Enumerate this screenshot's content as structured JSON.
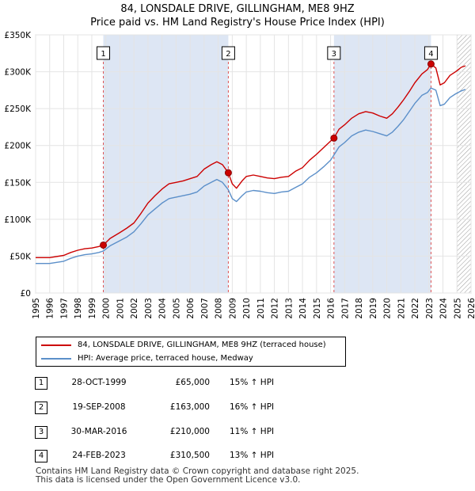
{
  "header": {
    "title": "84, LONSDALE DRIVE, GILLINGHAM, ME8 9HZ",
    "subtitle": "Price paid vs. HM Land Registry's House Price Index (HPI)"
  },
  "chart_data": {
    "type": "line",
    "title": "84, LONSDALE DRIVE, GILLINGHAM, ME8 9HZ",
    "subtitle": "Price paid vs. HM Land Registry's House Price Index (HPI)",
    "xlim": [
      1995,
      2026
    ],
    "ylim": [
      0,
      350000
    ],
    "x_ticks": [
      "1995",
      "1996",
      "1997",
      "1998",
      "1999",
      "2000",
      "2001",
      "2002",
      "2003",
      "2004",
      "2005",
      "2006",
      "2007",
      "2008",
      "2009",
      "2010",
      "2011",
      "2012",
      "2013",
      "2014",
      "2015",
      "2016",
      "2017",
      "2018",
      "2019",
      "2020",
      "2021",
      "2022",
      "2023",
      "2024",
      "2025",
      "2026"
    ],
    "y_ticks": [
      {
        "value": 0,
        "label": "£0"
      },
      {
        "value": 50000,
        "label": "£50K"
      },
      {
        "value": 100000,
        "label": "£100K"
      },
      {
        "value": 150000,
        "label": "£150K"
      },
      {
        "value": 200000,
        "label": "£200K"
      },
      {
        "value": 250000,
        "label": "£250K"
      },
      {
        "value": 300000,
        "label": "£300K"
      },
      {
        "value": 350000,
        "label": "£350K"
      }
    ],
    "series": [
      {
        "name": "84, LONSDALE DRIVE, GILLINGHAM, ME8 9HZ (terraced house)",
        "color": "#cc0000",
        "x": [
          1995.0,
          1996.0,
          1997.0,
          1997.5,
          1998.0,
          1998.5,
          1999.0,
          1999.5,
          1999.82,
          2000.3,
          2001.0,
          2001.5,
          2002.0,
          2002.5,
          2003.0,
          2003.5,
          2004.0,
          2004.5,
          2005.0,
          2005.5,
          2006.0,
          2006.5,
          2007.0,
          2007.5,
          2007.9,
          2008.3,
          2008.72,
          2009.0,
          2009.3,
          2009.7,
          2010.0,
          2010.5,
          2011.0,
          2011.5,
          2012.0,
          2012.5,
          2013.0,
          2013.5,
          2014.0,
          2014.5,
          2015.0,
          2015.5,
          2016.0,
          2016.24,
          2016.6,
          2017.0,
          2017.5,
          2018.0,
          2018.5,
          2019.0,
          2019.5,
          2020.0,
          2020.4,
          2020.8,
          2021.2,
          2021.6,
          2022.0,
          2022.5,
          2022.9,
          2023.15,
          2023.5,
          2023.8,
          2024.1,
          2024.5,
          2024.9,
          2025.3,
          2025.6
        ],
        "values": [
          48000,
          48000,
          51000,
          55000,
          58000,
          60000,
          61000,
          63000,
          65000,
          74000,
          82000,
          88000,
          95000,
          108000,
          122000,
          132000,
          141000,
          148000,
          150000,
          152000,
          155000,
          158000,
          168000,
          174000,
          178000,
          174000,
          163000,
          148000,
          142000,
          152000,
          158000,
          160000,
          158000,
          156000,
          155000,
          157000,
          158000,
          165000,
          170000,
          180000,
          188000,
          197000,
          206000,
          210000,
          222000,
          228000,
          237000,
          243000,
          246000,
          244000,
          240000,
          237000,
          243000,
          252000,
          262000,
          273000,
          285000,
          297000,
          303000,
          310500,
          305000,
          282000,
          285000,
          295000,
          300000,
          306000,
          308000
        ]
      },
      {
        "name": "HPI: Average price, terraced house, Medway",
        "color": "#5b8fc9",
        "x": [
          1995.0,
          1996.0,
          1997.0,
          1997.5,
          1998.0,
          1998.5,
          1999.0,
          1999.5,
          1999.82,
          2000.3,
          2001.0,
          2001.5,
          2002.0,
          2002.5,
          2003.0,
          2003.5,
          2004.0,
          2004.5,
          2005.0,
          2005.5,
          2006.0,
          2006.5,
          2007.0,
          2007.5,
          2007.9,
          2008.3,
          2008.72,
          2009.0,
          2009.3,
          2009.7,
          2010.0,
          2010.5,
          2011.0,
          2011.5,
          2012.0,
          2012.5,
          2013.0,
          2013.5,
          2014.0,
          2014.5,
          2015.0,
          2015.5,
          2016.0,
          2016.24,
          2016.6,
          2017.0,
          2017.5,
          2018.0,
          2018.5,
          2019.0,
          2019.5,
          2020.0,
          2020.4,
          2020.8,
          2021.2,
          2021.6,
          2022.0,
          2022.5,
          2022.9,
          2023.15,
          2023.5,
          2023.8,
          2024.1,
          2024.5,
          2024.9,
          2025.3,
          2025.6
        ],
        "values": [
          40000,
          40000,
          43000,
          47000,
          50000,
          52000,
          53000,
          55000,
          57000,
          64000,
          71000,
          76000,
          83000,
          94000,
          106000,
          114000,
          122000,
          128000,
          130000,
          132000,
          134000,
          137000,
          145000,
          150000,
          154000,
          150000,
          140000,
          128000,
          124000,
          132000,
          137000,
          139000,
          138000,
          136000,
          135000,
          137000,
          138000,
          143000,
          148000,
          157000,
          163000,
          171000,
          180000,
          187000,
          198000,
          204000,
          213000,
          218000,
          221000,
          219000,
          216000,
          213000,
          218000,
          226000,
          235000,
          246000,
          257000,
          268000,
          272000,
          278000,
          275000,
          254000,
          256000,
          265000,
          270000,
          274000,
          276000
        ]
      }
    ],
    "markers": [
      {
        "label": "1",
        "x": 1999.82,
        "y": 65000
      },
      {
        "label": "2",
        "x": 2008.72,
        "y": 163000
      },
      {
        "label": "3",
        "x": 2016.24,
        "y": 210000
      },
      {
        "label": "4",
        "x": 2023.15,
        "y": 310500
      }
    ],
    "hatched_from": 2025.0
  },
  "legend": {
    "items": [
      {
        "label": "84, LONSDALE DRIVE, GILLINGHAM, ME8 9HZ (terraced house)",
        "color": "#cc0000"
      },
      {
        "label": "HPI: Average price, terraced house, Medway",
        "color": "#5b8fc9"
      }
    ]
  },
  "transactions": [
    {
      "num": "1",
      "date": "28-OCT-1999",
      "price": "£65,000",
      "hpi": "15% ↑ HPI"
    },
    {
      "num": "2",
      "date": "19-SEP-2008",
      "price": "£163,000",
      "hpi": "16% ↑ HPI"
    },
    {
      "num": "3",
      "date": "30-MAR-2016",
      "price": "£210,000",
      "hpi": "11% ↑ HPI"
    },
    {
      "num": "4",
      "date": "24-FEB-2023",
      "price": "£310,500",
      "hpi": "13% ↑ HPI"
    }
  ],
  "footer": {
    "line1": "Contains HM Land Registry data © Crown copyright and database right 2025.",
    "line2": "This data is licensed under the Open Government Licence v3.0."
  }
}
